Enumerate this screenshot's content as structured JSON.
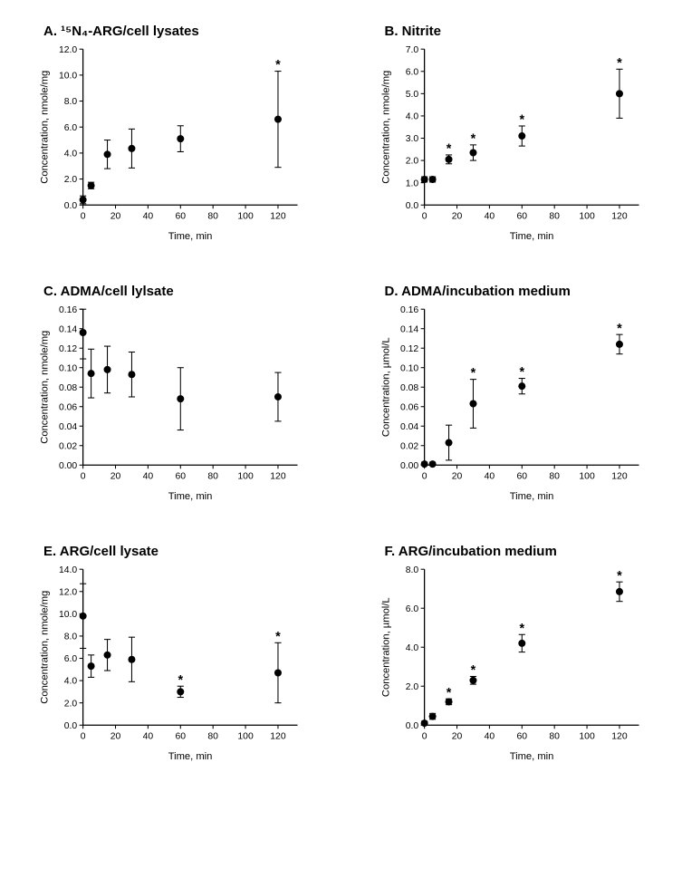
{
  "figure": {
    "background": "#ffffff",
    "axis_color": "#000000",
    "marker_color": "#000000",
    "significance_marker": "*"
  },
  "chart_data": [
    {
      "type": "scatter",
      "title": "A. ¹⁵N₄-ARG/cell lysates",
      "xlabel": "Time, min",
      "ylabel": "Concentration, nmole/mg",
      "grid": false,
      "legend": null,
      "xlim": [
        0,
        132
      ],
      "ylim": [
        0,
        12
      ],
      "xticks": [
        0,
        20,
        40,
        60,
        80,
        100,
        120
      ],
      "xtick_labels": [
        "0",
        "20",
        "40",
        "60",
        "80",
        "100",
        "120"
      ],
      "yticks": [
        0,
        2,
        4,
        6,
        8,
        10,
        12
      ],
      "ytick_labels": [
        "0.0",
        "2.0",
        "4.0",
        "6.0",
        "8.0",
        "10.0",
        "12.0"
      ],
      "x": [
        0,
        5,
        15,
        30,
        60,
        120
      ],
      "y": [
        0.4,
        1.5,
        3.9,
        4.35,
        5.1,
        6.6
      ],
      "yerr": [
        0.3,
        0.25,
        1.1,
        1.5,
        1.0,
        3.7
      ],
      "significant": [
        false,
        false,
        false,
        false,
        false,
        true
      ]
    },
    {
      "type": "scatter",
      "title": "B. Nitrite",
      "xlabel": "Time, min",
      "ylabel": "Concentration, nmole/mg",
      "grid": false,
      "legend": null,
      "xlim": [
        0,
        132
      ],
      "ylim": [
        0,
        7
      ],
      "xticks": [
        0,
        20,
        40,
        60,
        80,
        100,
        120
      ],
      "xtick_labels": [
        "0",
        "20",
        "40",
        "60",
        "80",
        "100",
        "120"
      ],
      "yticks": [
        0,
        1,
        2,
        3,
        4,
        5,
        6,
        7
      ],
      "ytick_labels": [
        "0.0",
        "1.0",
        "2.0",
        "3.0",
        "4.0",
        "5.0",
        "6.0",
        "7.0"
      ],
      "x": [
        0,
        5,
        15,
        30,
        60,
        120
      ],
      "y": [
        1.15,
        1.15,
        2.05,
        2.35,
        3.1,
        5.0
      ],
      "yerr": [
        0.12,
        0.12,
        0.2,
        0.35,
        0.45,
        1.1
      ],
      "significant": [
        false,
        false,
        true,
        true,
        true,
        true
      ]
    },
    {
      "type": "scatter",
      "title": "C. ADMA/cell lylsate",
      "xlabel": "Time, min",
      "ylabel": "Concentration, nmole/mg",
      "grid": false,
      "legend": null,
      "xlim": [
        0,
        132
      ],
      "ylim": [
        0,
        0.16
      ],
      "xticks": [
        0,
        20,
        40,
        60,
        80,
        100,
        120
      ],
      "xtick_labels": [
        "0",
        "20",
        "40",
        "60",
        "80",
        "100",
        "120"
      ],
      "yticks": [
        0,
        0.02,
        0.04,
        0.06,
        0.08,
        0.1,
        0.12,
        0.14,
        0.16
      ],
      "ytick_labels": [
        "0.00",
        "0.02",
        "0.04",
        "0.06",
        "0.08",
        "0.10",
        "0.12",
        "0.14",
        "0.16"
      ],
      "x": [
        0,
        5,
        15,
        30,
        60,
        120
      ],
      "y": [
        0.136,
        0.094,
        0.098,
        0.093,
        0.068,
        0.07
      ],
      "yerr": [
        0.027,
        0.025,
        0.024,
        0.023,
        0.032,
        0.025
      ],
      "significant": [
        false,
        false,
        false,
        false,
        false,
        false
      ]
    },
    {
      "type": "scatter",
      "title": "D. ADMA/incubation medium",
      "xlabel": "Time, min",
      "ylabel": "Concentration, µmol/L",
      "grid": false,
      "legend": null,
      "xlim": [
        0,
        132
      ],
      "ylim": [
        0,
        0.16
      ],
      "xticks": [
        0,
        20,
        40,
        60,
        80,
        100,
        120
      ],
      "xtick_labels": [
        "0",
        "20",
        "40",
        "60",
        "80",
        "100",
        "120"
      ],
      "yticks": [
        0,
        0.02,
        0.04,
        0.06,
        0.08,
        0.1,
        0.12,
        0.14,
        0.16
      ],
      "ytick_labels": [
        "0.00",
        "0.02",
        "0.04",
        "0.06",
        "0.08",
        "0.10",
        "0.12",
        "0.14",
        "0.16"
      ],
      "x": [
        0,
        5,
        15,
        30,
        60,
        120
      ],
      "y": [
        0.001,
        0.001,
        0.023,
        0.063,
        0.081,
        0.124
      ],
      "yerr": [
        0.002,
        0.002,
        0.018,
        0.025,
        0.008,
        0.01
      ],
      "significant": [
        false,
        false,
        false,
        true,
        true,
        true
      ]
    },
    {
      "type": "scatter",
      "title": "E. ARG/cell lysate",
      "xlabel": "Time, min",
      "ylabel": "Concentration, nmole/mg",
      "grid": false,
      "legend": null,
      "xlim": [
        0,
        132
      ],
      "ylim": [
        0,
        14
      ],
      "xticks": [
        0,
        20,
        40,
        60,
        80,
        100,
        120
      ],
      "xtick_labels": [
        "0",
        "20",
        "40",
        "60",
        "80",
        "100",
        "120"
      ],
      "yticks": [
        0,
        2,
        4,
        6,
        8,
        10,
        12,
        14
      ],
      "ytick_labels": [
        "0.0",
        "2.0",
        "4.0",
        "6.0",
        "8.0",
        "10.0",
        "12.0",
        "14.0"
      ],
      "x": [
        0,
        5,
        15,
        30,
        60,
        120
      ],
      "y": [
        9.8,
        5.3,
        6.3,
        5.9,
        3.0,
        4.7
      ],
      "yerr": [
        2.9,
        1.0,
        1.4,
        2.0,
        0.5,
        2.7
      ],
      "significant": [
        false,
        false,
        false,
        false,
        true,
        true
      ]
    },
    {
      "type": "scatter",
      "title": "F. ARG/incubation medium",
      "xlabel": "Time, min",
      "ylabel": "Concentration, µmol/L",
      "grid": false,
      "legend": null,
      "xlim": [
        0,
        132
      ],
      "ylim": [
        0,
        8
      ],
      "xticks": [
        0,
        20,
        40,
        60,
        80,
        100,
        120
      ],
      "xtick_labels": [
        "0",
        "20",
        "40",
        "60",
        "80",
        "100",
        "120"
      ],
      "yticks": [
        0,
        2,
        4,
        6,
        8
      ],
      "ytick_labels": [
        "0.0",
        "2.0",
        "4.0",
        "6.0",
        "8.0"
      ],
      "x": [
        0,
        5,
        15,
        30,
        60,
        120
      ],
      "y": [
        0.1,
        0.45,
        1.2,
        2.3,
        4.2,
        6.85
      ],
      "yerr": [
        0.1,
        0.15,
        0.15,
        0.2,
        0.45,
        0.5
      ],
      "significant": [
        false,
        false,
        true,
        true,
        true,
        true
      ]
    }
  ]
}
